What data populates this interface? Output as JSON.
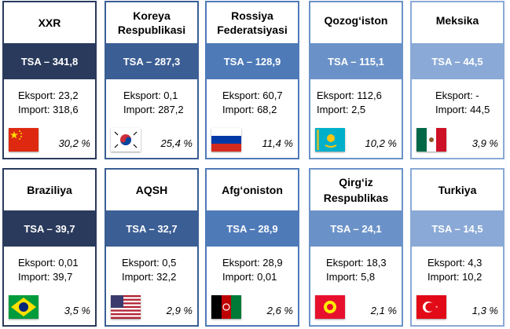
{
  "cards": [
    {
      "name": "XXR",
      "tsa": "TSA – 341,8",
      "export": "Eksport: 23,2",
      "import": "Import: 318,6",
      "percent": "30,2 %",
      "flag_icon": "china-flag-icon",
      "band_color": "#2a3a5c"
    },
    {
      "name": "Koreya Respublikasi",
      "tsa": "TSA – 287,3",
      "export": "Eksport: 0,1",
      "import": "Import: 287,2",
      "percent": "25,4 %",
      "flag_icon": "south-korea-flag-icon",
      "band_color": "#3b5e94"
    },
    {
      "name": "Rossiya Federatsiyasi",
      "tsa": "TSA – 128,9",
      "export": "Eksport: 60,7",
      "import": "Import: 68,2",
      "percent": "11,4 %",
      "flag_icon": "russia-flag-icon",
      "band_color": "#4e7ab8"
    },
    {
      "name": "Qozog‘iston",
      "tsa": "TSA – 115,1",
      "export": "Eksport: 112,6",
      "import": "Import: 2,5",
      "percent": "10,2 %",
      "flag_icon": "kazakhstan-flag-icon",
      "band_color": "#6b92c8"
    },
    {
      "name": "Meksika",
      "tsa": "TSA – 44,5",
      "export": "Eksport: -",
      "import": "Import: 44,5",
      "percent": "3,9 %",
      "flag_icon": "mexico-flag-icon",
      "band_color": "#8aa9d6"
    },
    {
      "name": "Braziliya",
      "tsa": "TSA – 39,7",
      "export": "Eksport: 0,01",
      "import": "Import: 39,7",
      "percent": "3,5 %",
      "flag_icon": "brazil-flag-icon",
      "band_color": "#2a3a5c"
    },
    {
      "name": "AQSH",
      "tsa": "TSA – 32,7",
      "export": "Eksport: 0,5",
      "import": "Import: 32,2",
      "percent": "2,9 %",
      "flag_icon": "usa-flag-icon",
      "band_color": "#3b5e94"
    },
    {
      "name": "Afg‘oniston",
      "tsa": "TSA – 28,9",
      "export": "Eksport: 28,9",
      "import": "Import: 0,01",
      "percent": "2,6 %",
      "flag_icon": "afghanistan-flag-icon",
      "band_color": "#4e7ab8"
    },
    {
      "name": "Qirg‘iz Respublikas",
      "tsa": "TSA – 24,1",
      "export": "Eksport: 18,3",
      "import": "Import: 5,8",
      "percent": "2,1 %",
      "flag_icon": "kyrgyzstan-flag-icon",
      "band_color": "#6b92c8"
    },
    {
      "name": "Turkiya",
      "tsa": "TSA – 14,5",
      "export": "Eksport: 4,3",
      "import": "Import: 10,2",
      "percent": "1,3 %",
      "flag_icon": "turkey-flag-icon",
      "band_color": "#8aa9d6"
    }
  ]
}
